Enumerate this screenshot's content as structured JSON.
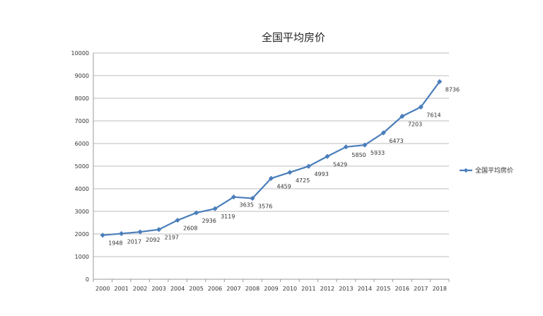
{
  "chart_data": {
    "type": "line",
    "title": "全国平均房价",
    "xlabel": "",
    "ylabel": "",
    "ylim": [
      0,
      10000
    ],
    "ytick_step": 1000,
    "grid": true,
    "legend_position": "right",
    "categories": [
      "2000",
      "2001",
      "2002",
      "2003",
      "2004",
      "2005",
      "2006",
      "2007",
      "2008",
      "2009",
      "2010",
      "2011",
      "2012",
      "2013",
      "2014",
      "2015",
      "2016",
      "2017",
      "2018"
    ],
    "series": [
      {
        "name": "全国平均房价",
        "color": "#4a7ebb",
        "values": [
          1948,
          2017,
          2092,
          2197,
          2608,
          2936,
          3119,
          3635,
          3576,
          4459,
          4725,
          4993,
          5429,
          5850,
          5933,
          6473,
          7203,
          7614,
          8736
        ]
      }
    ]
  }
}
